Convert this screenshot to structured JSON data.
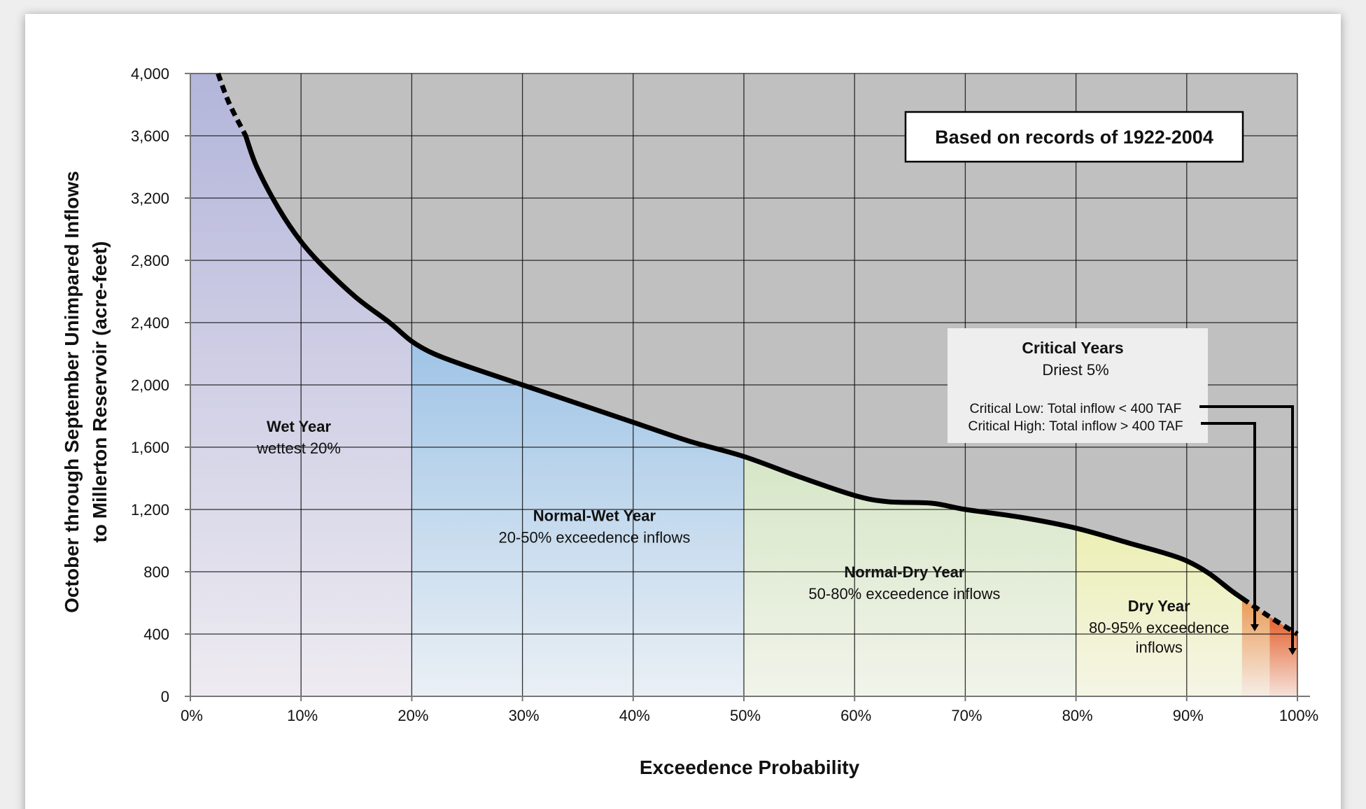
{
  "chart_data": {
    "type": "area",
    "xlabel": "Exceedence Probability",
    "ylabel_lines": [
      "October through September Unimpared Inflows",
      "to Millerton Reservoir (acre-feet)"
    ],
    "xlim": [
      0,
      100
    ],
    "ylim": [
      0,
      4000
    ],
    "x_ticks": [
      0,
      10,
      20,
      30,
      40,
      50,
      60,
      70,
      80,
      90,
      100
    ],
    "x_tick_labels": [
      "0%",
      "10%",
      "20%",
      "30%",
      "40%",
      "50%",
      "60%",
      "70%",
      "80%",
      "90%",
      "100%"
    ],
    "y_ticks": [
      0,
      400,
      800,
      1200,
      1600,
      2000,
      2400,
      2800,
      3200,
      3600,
      4000
    ],
    "y_tick_labels": [
      "0",
      "400",
      "800",
      "1,200",
      "1,600",
      "2,000",
      "2,400",
      "2,800",
      "3,200",
      "3,600",
      "4,000"
    ],
    "grid": true,
    "series": [
      {
        "style": "solid",
        "x": [
          5,
          6,
          8,
          10,
          12,
          15,
          18,
          20,
          22,
          25,
          30,
          35,
          40,
          45,
          50,
          55,
          60,
          63,
          67,
          70,
          75,
          80,
          85,
          88,
          90,
          92,
          94,
          95
        ],
        "y": [
          3600,
          3400,
          3130,
          2920,
          2760,
          2560,
          2400,
          2280,
          2200,
          2120,
          2000,
          1880,
          1760,
          1640,
          1540,
          1410,
          1290,
          1250,
          1240,
          1200,
          1150,
          1080,
          980,
          920,
          870,
          790,
          680,
          630
        ]
      },
      {
        "style": "dashed",
        "x": [
          2.5,
          3.5,
          5
        ],
        "y": [
          4000,
          3810,
          3600
        ]
      },
      {
        "style": "dashed",
        "x": [
          95,
          97.5,
          100
        ],
        "y": [
          630,
          510,
          400
        ]
      }
    ],
    "zones": [
      {
        "name": "Wet Year",
        "sub": [
          "wettest 20%"
        ],
        "x_range": [
          0,
          20
        ],
        "color_top": "#b3b5da",
        "color_bottom": "#eeebf1",
        "label_x": 9.8,
        "label_y": 1700
      },
      {
        "name": "Normal-Wet Year",
        "sub": [
          "20-50% exceedence inflows"
        ],
        "x_range": [
          20,
          50
        ],
        "color_top": "#9fc4e6",
        "color_bottom": "#eaf0f5",
        "label_x": 36.5,
        "label_y": 1125
      },
      {
        "name": "Normal-Dry Year",
        "sub": [
          "50-80% exceedence inflows"
        ],
        "x_range": [
          50,
          80
        ],
        "color_top": "#d6e6c7",
        "color_bottom": "#f1f4ea",
        "label_x": 64.5,
        "label_y": 765
      },
      {
        "name": "Dry Year",
        "sub": [
          "80-95% exceedence",
          "inflows"
        ],
        "x_range": [
          80,
          95
        ],
        "color_top": "#ecefb4",
        "color_bottom": "#f5f5e6",
        "label_x": 87.5,
        "label_y": 545
      },
      {
        "name": "",
        "sub": [],
        "x_range": [
          95,
          97.5
        ],
        "color_top": "#ea9a55",
        "color_bottom": "#f6ede6",
        "label_x": 96,
        "label_y": 0
      },
      {
        "name": "",
        "sub": [],
        "x_range": [
          97.5,
          100
        ],
        "color_top": "#e4602d",
        "color_bottom": "#f6e2da",
        "label_x": 99,
        "label_y": 0
      }
    ],
    "annotations": {
      "records_note": "Based on records of 1922-2004",
      "critical_title": "Critical Years",
      "critical_sub": "Driest 5%",
      "critical_low": "Critical Low: Total inflow < 400 TAF",
      "critical_high": "Critical High: Total inflow > 400 TAF"
    },
    "colors": {
      "plot_background": "#c0c0c0",
      "grid": "#111111",
      "curve": "#000000",
      "critical_box": "#eeeeee"
    }
  }
}
